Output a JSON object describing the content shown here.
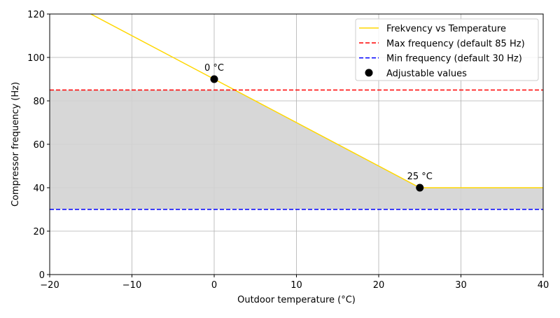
{
  "chart_data": {
    "type": "line",
    "title": "",
    "xlabel": "Outdoor temperature (°C)",
    "ylabel": "Compressor frequency (Hz)",
    "xlim": [
      -20,
      40
    ],
    "ylim": [
      0,
      120
    ],
    "xticks": [
      -20,
      -10,
      0,
      10,
      20,
      30,
      40
    ],
    "xtick_labels": [
      "−20",
      "−10",
      "0",
      "10",
      "20",
      "30",
      "40"
    ],
    "yticks": [
      0,
      20,
      40,
      60,
      80,
      100,
      120
    ],
    "ytick_labels": [
      "0",
      "20",
      "40",
      "60",
      "80",
      "100",
      "120"
    ],
    "grid": true,
    "legend_position": "top-right",
    "series": [
      {
        "name": "Frekvency vs Temperature",
        "kind": "line",
        "color": "#FFD700",
        "x": [
          -20,
          0,
          25,
          40
        ],
        "y": [
          130,
          90,
          40,
          40
        ]
      },
      {
        "name": "Max frequency (default 85 Hz)",
        "kind": "hline",
        "color": "#FF0000",
        "y": 85
      },
      {
        "name": "Min frequency (default 30 Hz)",
        "kind": "hline",
        "color": "#0000FF",
        "y": 30
      },
      {
        "name": "Adjustable values",
        "kind": "scatter",
        "color": "#000000",
        "x": [
          0,
          25
        ],
        "y": [
          90,
          40
        ]
      }
    ],
    "fill": {
      "between_lower": 30,
      "upper": "min(line, 85)",
      "color": "#D3D3D3"
    },
    "annotations": [
      {
        "text": "0 °C",
        "x": 0,
        "y": 90
      },
      {
        "text": "25 °C",
        "x": 25,
        "y": 40
      }
    ]
  }
}
